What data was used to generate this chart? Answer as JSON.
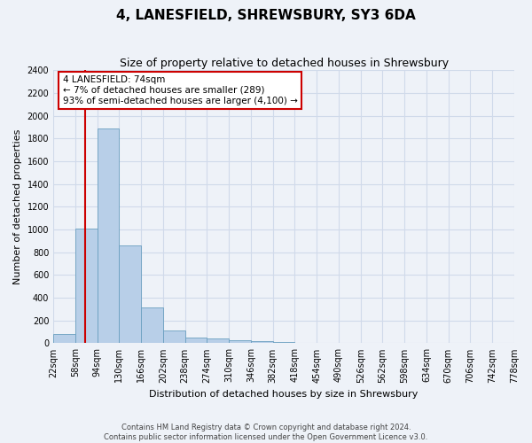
{
  "title": "4, LANESFIELD, SHREWSBURY, SY3 6DA",
  "subtitle": "Size of property relative to detached houses in Shrewsbury",
  "xlabel": "Distribution of detached houses by size in Shrewsbury",
  "ylabel": "Number of detached properties",
  "footer_line1": "Contains HM Land Registry data © Crown copyright and database right 2024.",
  "footer_line2": "Contains public sector information licensed under the Open Government Licence v3.0.",
  "bin_edges": [
    22,
    58,
    94,
    130,
    166,
    202,
    238,
    274,
    310,
    346,
    382,
    418,
    454,
    490,
    526,
    562,
    598,
    634,
    670,
    706,
    742
  ],
  "bar_heights": [
    80,
    1010,
    1890,
    860,
    315,
    115,
    50,
    40,
    30,
    20,
    10,
    0,
    0,
    0,
    0,
    0,
    0,
    0,
    0,
    0
  ],
  "bar_color": "#b8cfe8",
  "bar_edge_color": "#6a9fc0",
  "grid_color": "#d0daea",
  "background_color": "#eef2f8",
  "annotation_box_color": "#ffffff",
  "annotation_border_color": "#cc0000",
  "vline_color": "#cc0000",
  "vline_x": 74,
  "annotation_text_line1": "4 LANESFIELD: 74sqm",
  "annotation_text_line2": "← 7% of detached houses are smaller (289)",
  "annotation_text_line3": "93% of semi-detached houses are larger (4,100) →",
  "ylim": [
    0,
    2400
  ],
  "yticks": [
    0,
    200,
    400,
    600,
    800,
    1000,
    1200,
    1400,
    1600,
    1800,
    2000,
    2200,
    2400
  ],
  "title_fontsize": 11,
  "subtitle_fontsize": 9,
  "xlabel_fontsize": 8,
  "ylabel_fontsize": 8,
  "tick_fontsize": 7,
  "footer_fontsize": 6,
  "annot_fontsize": 7.5
}
